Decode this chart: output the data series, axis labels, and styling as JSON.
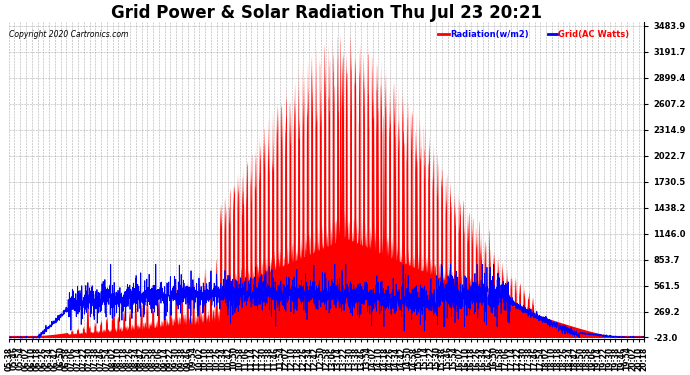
{
  "title": "Grid Power & Solar Radiation Thu Jul 23 20:21",
  "copyright": "Copyright 2020 Cartronics.com",
  "legend_radiation": "Radiation(w/m2)",
  "legend_grid": "Grid(AC Watts)",
  "y_min": -23.0,
  "y_max": 3483.9,
  "y_ticks": [
    3483.9,
    3191.7,
    2899.4,
    2607.2,
    2314.9,
    2022.7,
    1730.5,
    1438.2,
    1146.0,
    853.7,
    561.5,
    269.2,
    -23.0
  ],
  "x_start_min": 338,
  "x_end_min": 1218,
  "radiation_color": "#FF0000",
  "grid_color": "#0000FF",
  "background_color": "#FFFFFF",
  "title_fontsize": 12,
  "tick_fontsize": 5.5,
  "dpi": 100,
  "x_tick_step": 8,
  "spike_times_hr": [
    13.28,
    13.35,
    13.42,
    13.52,
    13.62,
    13.72,
    13.82,
    13.92,
    14.05,
    14.15,
    14.28,
    14.42,
    14.55,
    14.75,
    14.92,
    15.05,
    15.22,
    15.42,
    15.62,
    15.82,
    16.05,
    16.25,
    16.48,
    16.72,
    11.05,
    11.52,
    12.52,
    7.45,
    8.05,
    8.55
  ],
  "spike_heights": [
    3380,
    3200,
    3100,
    3320,
    3050,
    2980,
    2850,
    2780,
    2680,
    2580,
    2500,
    2400,
    2280,
    2200,
    2100,
    2000,
    1900,
    1800,
    1700,
    1600,
    1500,
    1400,
    1300,
    1200,
    1500,
    1200,
    1800,
    600,
    550,
    500
  ]
}
